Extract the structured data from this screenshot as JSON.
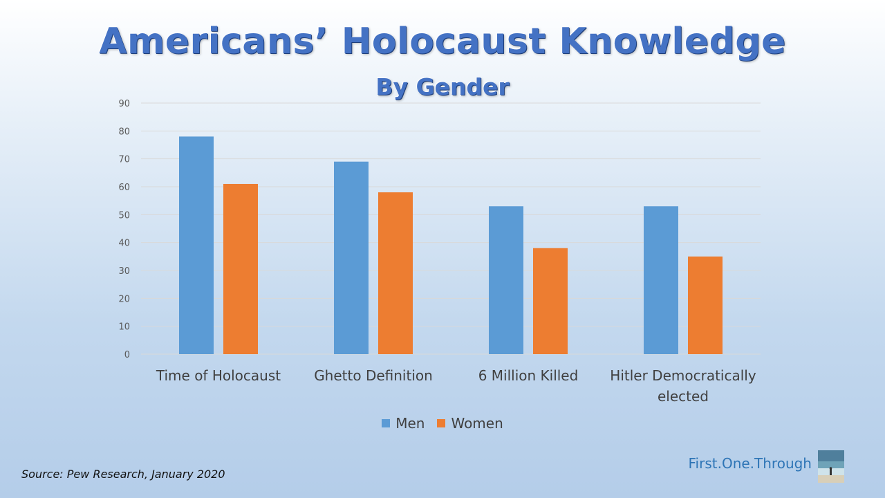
{
  "slide": {
    "title": "Americans’ Holocaust Knowledge",
    "subtitle": "By Gender",
    "source": "Source: Pew Research, January 2020",
    "brand": "First.One.Through"
  },
  "colors": {
    "men": "#5b9bd5",
    "women": "#ed7d31",
    "grid": "#d9d9d9",
    "axis_text": "#595959",
    "category_text": "#404040"
  },
  "chart_data": {
    "type": "bar",
    "title": "Americans’ Holocaust Knowledge",
    "subtitle": "By Gender",
    "categories": [
      [
        "Time of Holocaust"
      ],
      [
        "Ghetto Definition"
      ],
      [
        "6 Million Killed"
      ],
      [
        "Hitler Democratically",
        "elected"
      ]
    ],
    "series": [
      {
        "name": "Men",
        "values": [
          78,
          69,
          53,
          53
        ]
      },
      {
        "name": "Women",
        "values": [
          61,
          58,
          38,
          35
        ]
      }
    ],
    "ylim": [
      0,
      90
    ],
    "yticks": [
      0,
      10,
      20,
      30,
      40,
      50,
      60,
      70,
      80,
      90
    ],
    "grid": true,
    "legend_position": "bottom"
  }
}
